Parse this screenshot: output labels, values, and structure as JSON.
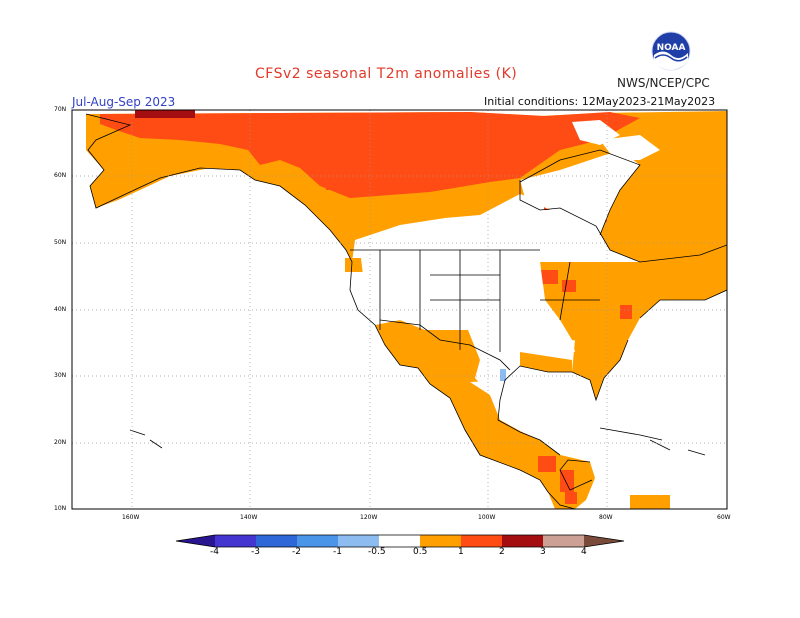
{
  "header": {
    "title": "CFSv2 seasonal T2m anomalies (K)",
    "agency": "NWS/NCEP/CPC",
    "season": "Jul-Aug-Sep 2023",
    "initial_conditions": "Initial conditions: 12May2023-21May2023",
    "logo_text": "NOAA"
  },
  "map": {
    "lat_labels": [
      "70N",
      "60N",
      "50N",
      "40N",
      "30N",
      "20N",
      "10N"
    ],
    "lon_labels": [
      "160W",
      "140W",
      "120W",
      "100W",
      "80W",
      "60W"
    ]
  },
  "colorbar": {
    "labels": [
      "-4",
      "-3",
      "-2",
      "-1",
      "-0.5",
      "0.5",
      "1",
      "2",
      "3",
      "4"
    ],
    "colors": {
      "below_-4": "#2a1590",
      "-4_-3": "#4435d0",
      "-3_-2": "#2e67d8",
      "-2_-1": "#4a95e8",
      "-1_-0.5": "#8cbcf0",
      "-0.5_0.5": "#ffffff",
      "0.5_1": "#ffa000",
      "1_2": "#ff4c14",
      "2_3": "#a50e10",
      "3_4": "#cca094",
      "above_4": "#7a4a3a"
    }
  },
  "chart_data": {
    "type": "heatmap",
    "title": "CFSv2 seasonal T2m anomalies (K)",
    "subtitle": "Jul-Aug-Sep 2023",
    "xlabel": "",
    "ylabel": "",
    "x_range": [
      -170,
      -60
    ],
    "y_range": [
      10,
      70
    ],
    "x_ticks": [
      "160W",
      "140W",
      "120W",
      "100W",
      "80W",
      "60W"
    ],
    "y_ticks": [
      "70N",
      "60N",
      "50N",
      "40N",
      "30N",
      "20N",
      "10N"
    ],
    "grid": true,
    "legend": "bottom",
    "levels": [
      -4,
      -3,
      -2,
      -1,
      -0.5,
      0.5,
      1,
      2,
      3,
      4
    ],
    "regions": [
      {
        "region": "Northern Canada and Alaska",
        "anomaly_K": "1 to 2"
      },
      {
        "region": "Far northern Alaska",
        "anomaly_K": "2 to 3"
      },
      {
        "region": "Western Canada and Alaska",
        "anomaly_K": "0.5 to 1"
      },
      {
        "region": "Eastern Canada",
        "anomaly_K": "0.5 to 1"
      },
      {
        "region": "Hudson Bay",
        "anomaly_K": "-0.5 to 0.5"
      },
      {
        "region": "Mexico",
        "anomaly_K": "0.5 to 1"
      },
      {
        "region": "Southern Mexico and Central America",
        "anomaly_K": "1 to 3"
      },
      {
        "region": "Most of the contiguous United States",
        "anomaly_K": "-0.5 to 0.5"
      },
      {
        "region": "US Northeast and Great Lakes",
        "anomaly_K": "0.5 to 1"
      },
      {
        "region": "Texas",
        "anomaly_K": "-1 to -0.5"
      }
    ]
  }
}
